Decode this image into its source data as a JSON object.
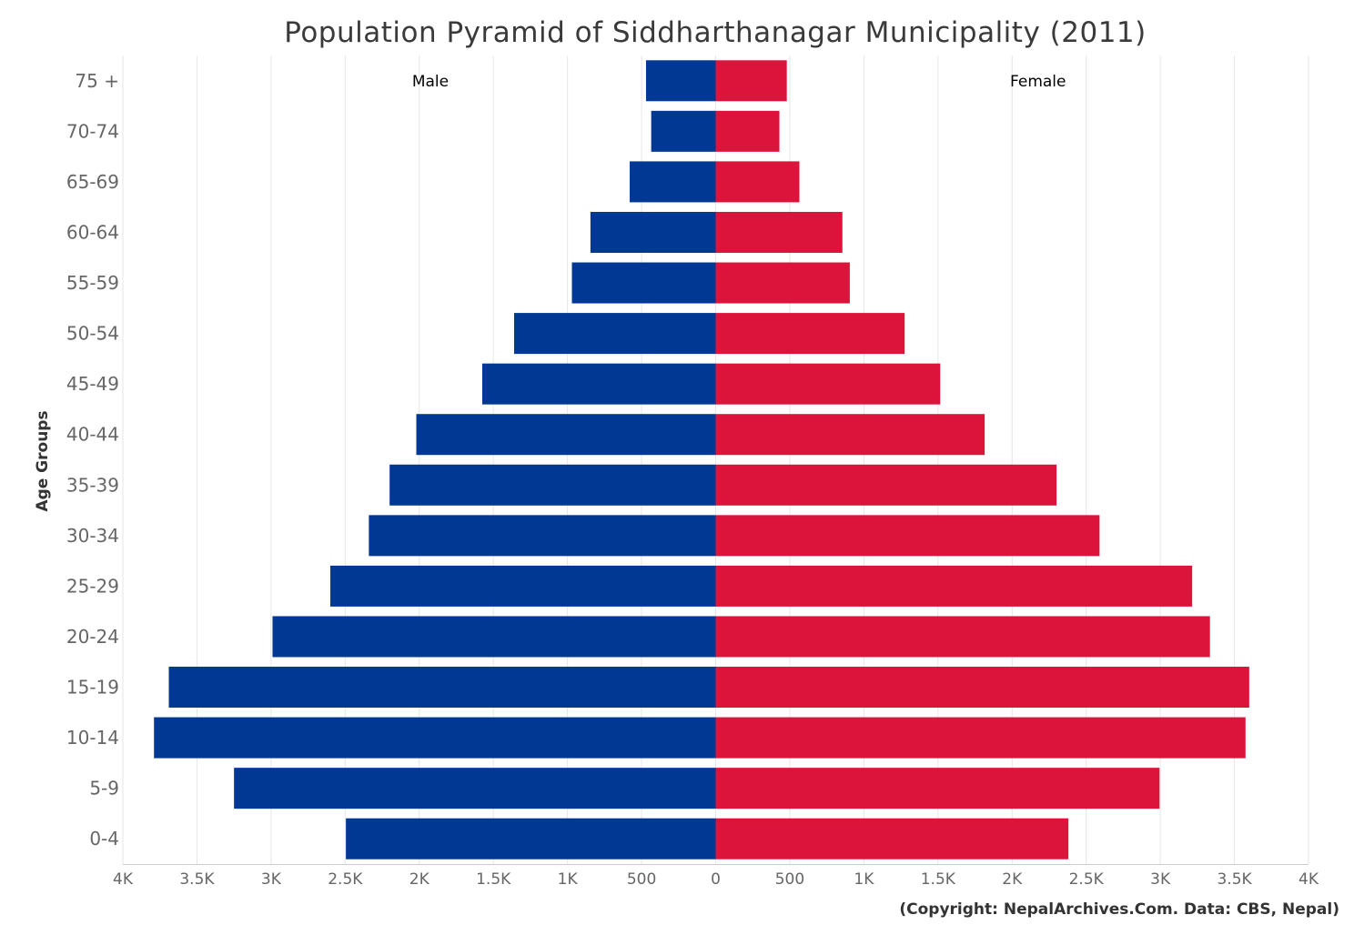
{
  "chart_data": {
    "type": "bar",
    "orientation": "horizontal",
    "title": "Population Pyramid of Siddharthanagar Municipality (2011)",
    "ylabel": "Age Groups",
    "xlabel": "",
    "categories": [
      "75 +",
      "70-74",
      "65-69",
      "60-64",
      "55-59",
      "50-54",
      "45-49",
      "40-44",
      "35-39",
      "30-34",
      "25-29",
      "20-24",
      "15-19",
      "10-14",
      "5-9",
      "0-4"
    ],
    "series": [
      {
        "name": "Male",
        "color": "#003893",
        "values": [
          470,
          435,
          580,
          845,
          970,
          1360,
          1575,
          2020,
          2200,
          2340,
          2600,
          2990,
          3690,
          3790,
          3250,
          2495
        ]
      },
      {
        "name": "Female",
        "color": "#dc143c",
        "values": [
          480,
          430,
          565,
          855,
          905,
          1275,
          1515,
          1815,
          2300,
          2590,
          3215,
          3335,
          3600,
          3575,
          2995,
          2380
        ]
      }
    ],
    "xlim": [
      -4000,
      4000
    ],
    "xticks": [
      {
        "value": -4000,
        "label": "4K"
      },
      {
        "value": -3500,
        "label": "3.5K"
      },
      {
        "value": -3000,
        "label": "3K"
      },
      {
        "value": -2500,
        "label": "2.5K"
      },
      {
        "value": -2000,
        "label": "2K"
      },
      {
        "value": -1500,
        "label": "1.5K"
      },
      {
        "value": -1000,
        "label": "1K"
      },
      {
        "value": -500,
        "label": "500"
      },
      {
        "value": 0,
        "label": "0"
      },
      {
        "value": 500,
        "label": "500"
      },
      {
        "value": 1000,
        "label": "1K"
      },
      {
        "value": 1500,
        "label": "1.5K"
      },
      {
        "value": 2000,
        "label": "2K"
      },
      {
        "value": 2500,
        "label": "2.5K"
      },
      {
        "value": 3000,
        "label": "3K"
      },
      {
        "value": 3500,
        "label": "3.5K"
      },
      {
        "value": 4000,
        "label": "4K"
      }
    ],
    "grid": true,
    "legend": "top, inside plot",
    "annotation": "(Copyright: NepalArchives.Com. Data: CBS, Nepal)"
  }
}
